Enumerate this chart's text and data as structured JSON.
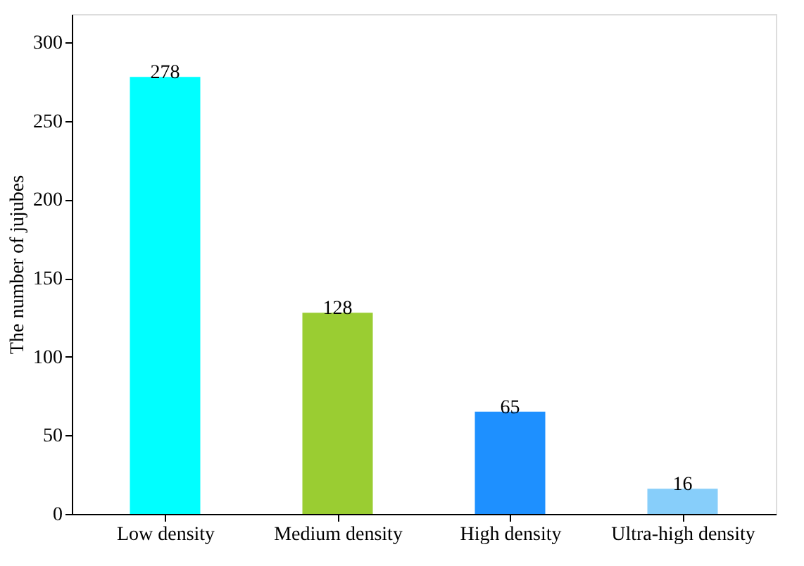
{
  "chart_data": {
    "type": "bar",
    "ylabel": "The number of jujubes",
    "categories": [
      "Low density",
      "Medium density",
      "High density",
      "Ultra-high density"
    ],
    "values": [
      278,
      128,
      65,
      16
    ],
    "colors": [
      "#00ffff",
      "#9acd32",
      "#1e90ff",
      "#87cefa"
    ],
    "ylim": [
      0,
      318
    ],
    "yticks": [
      0,
      50,
      100,
      150,
      200,
      250,
      300
    ],
    "data_labels": true,
    "grid": false,
    "legend": false
  }
}
